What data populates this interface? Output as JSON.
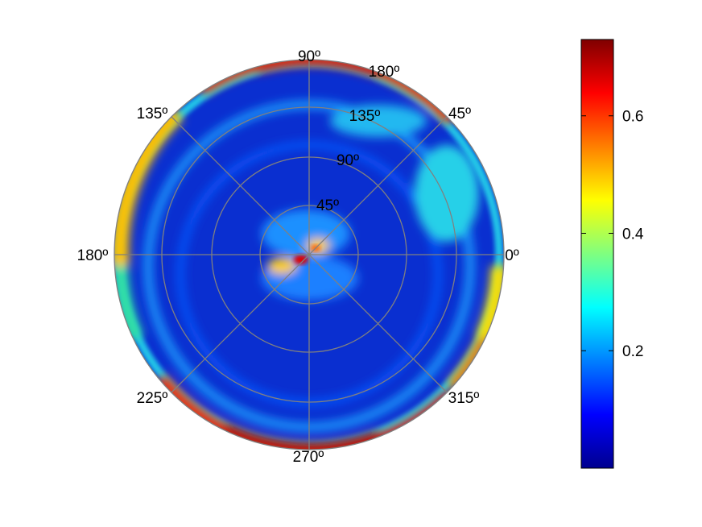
{
  "chart_data": {
    "type": "heatmap",
    "projection": "polar",
    "title": "",
    "colormap": "jet",
    "color_range": [
      0,
      0.73
    ],
    "colorbar": {
      "ticks": [
        0.2,
        0.4,
        0.6
      ],
      "tick_labels": [
        "0.2",
        "0.4",
        "0.6"
      ],
      "placement": "right"
    },
    "angular_labels": [
      "90º",
      "180º",
      "45º",
      "135º",
      "0º",
      "180º",
      "225º",
      "270º",
      "315º"
    ],
    "radial_labels": [
      "135º",
      "90º",
      "45º"
    ],
    "grid": true,
    "features": [
      {
        "angle_deg": 100,
        "radius": 0.95,
        "value": 0.62
      },
      {
        "angle_deg": 265,
        "radius": 0.95,
        "value": 0.7
      },
      {
        "angle_deg": 175,
        "radius": 0.03,
        "value": 0.7
      },
      {
        "angle_deg": 150,
        "radius": 0.92,
        "value": 0.48
      },
      {
        "angle_deg": 330,
        "radius": 0.93,
        "value": 0.45
      },
      {
        "angle_deg": 10,
        "radius": 0.4,
        "value": 0.3
      }
    ]
  }
}
